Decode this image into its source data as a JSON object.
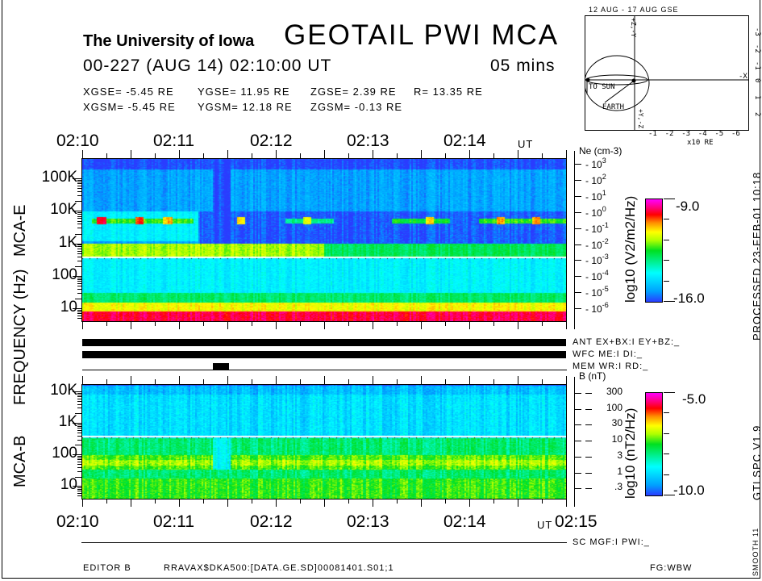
{
  "header": {
    "institution": "The University of Iowa",
    "title": "GEOTAIL PWI MCA",
    "datetime": "00-227 (AUG 14) 02:10:00 UT",
    "duration": "05 mins",
    "gse": [
      "XGSE=  -5.45 RE",
      "YGSE=  11.95 RE",
      "ZGSE=   2.39 RE",
      "R= 13.35 RE"
    ],
    "gsm": [
      "XGSM=  -5.45 RE",
      "YGSM=  12.18 RE",
      "ZGSM=  -0.13 RE"
    ]
  },
  "orbit": {
    "title": "12 AUG - 17 AUG  GSE",
    "top_axis_label": "+Z,-Y",
    "bottom_axis_label": "+Y,-Z",
    "x_axis_label": "-X",
    "to_sun": "TO SUN",
    "earth": "EARTH",
    "units": "x10 RE",
    "bottom_ticks": [
      "-1",
      "-2",
      "-3",
      "-4",
      "-5",
      "-6"
    ],
    "right_ticks": [
      "-3",
      "-2",
      "-1",
      "0",
      "1",
      "2"
    ]
  },
  "labels": {
    "frequency_axis": "FREQUENCY (Hz)",
    "mca_e": "MCA-E",
    "mca_b": "MCA-B",
    "ut": "UT",
    "ne_title": "Ne (cm",
    "ne_title_exp": "-3",
    "ne_title_close": ")",
    "b_title": "B (nT)",
    "e_cbar_label": "log10 (V2/m2/Hz)",
    "b_cbar_label": "log10 (nT2/Hz)",
    "processed": "PROCESSED 23-FEB-01  10:18",
    "version": "GTLSPC   V1.9",
    "smooth": "SMOOTH 11",
    "editor": "EDITOR B",
    "file": "RRAVAX$DKA500:[DATA.GE.SD]00081401.S01;1",
    "fg": "FG:WBW"
  },
  "status": {
    "ant": "ANT EX+BX:I EY+BZ:_",
    "wfc": "WFC ME:I    DI:_",
    "mem": "MEM WR:I    RD:_",
    "sc": "SC MGF:I    PWI:_"
  },
  "chart_data": [
    {
      "type": "heatmap",
      "title": "MCA-E",
      "xlabel": "UT",
      "ylabel": "FREQUENCY (Hz)",
      "x_ticks": [
        "02:10",
        "02:11",
        "02:12",
        "02:13",
        "02:14"
      ],
      "x_range_min": [
        0,
        5
      ],
      "y_ticks": [
        "100K",
        "10K",
        "1K",
        "100",
        "10"
      ],
      "y_tick_values": [
        100000,
        10000,
        1000,
        100,
        10
      ],
      "y_range_hz": [
        4,
        400000
      ],
      "right_axis": {
        "label": "Ne (cm-3)",
        "ticks": [
          {
            "base": "10",
            "exp": "3"
          },
          {
            "base": "10",
            "exp": "2"
          },
          {
            "base": "10",
            "exp": "1"
          },
          {
            "base": "10",
            "exp": "0"
          },
          {
            "base": "10",
            "exp": "-1"
          },
          {
            "base": "10",
            "exp": "-2"
          },
          {
            "base": "10",
            "exp": "-3"
          },
          {
            "base": "10",
            "exp": "-4"
          },
          {
            "base": "10",
            "exp": "-5"
          },
          {
            "base": "10",
            "exp": "-6"
          }
        ]
      },
      "colorbar": {
        "max": "-9.0",
        "min": "-16.0",
        "range": [
          -16,
          -9
        ]
      },
      "trace_hz": 370,
      "features": [
        {
          "t0": 0,
          "t1": 5,
          "fmin": 4,
          "fmax": 400000,
          "level": -15.2
        },
        {
          "t0": 0,
          "t1": 5,
          "fmin": 200000,
          "fmax": 400000,
          "level": -15.9
        },
        {
          "t0": 0,
          "t1": 5,
          "fmin": 3000,
          "fmax": 10000,
          "level": -14.6
        },
        {
          "t0": 0,
          "t1": 1.2,
          "fmin": 1200,
          "fmax": 10000,
          "level": -14.2
        },
        {
          "t0": 1.2,
          "t1": 5,
          "fmin": 1000,
          "fmax": 10000,
          "level": -15.8
        },
        {
          "t0": 0.1,
          "t1": 1.15,
          "fmin": 4200,
          "fmax": 6000,
          "level": -12.3
        },
        {
          "t0": 2.1,
          "t1": 2.6,
          "fmin": 4200,
          "fmax": 6000,
          "level": -13.2
        },
        {
          "t0": 3.2,
          "t1": 3.8,
          "fmin": 4200,
          "fmax": 6000,
          "level": -12.6
        },
        {
          "t0": 4.1,
          "t1": 5.0,
          "fmin": 4200,
          "fmax": 6000,
          "level": -12.4
        },
        {
          "t0": 0.15,
          "t1": 0.25,
          "fmin": 4000,
          "fmax": 6500,
          "level": -9.8
        },
        {
          "t0": 0.55,
          "t1": 0.63,
          "fmin": 4000,
          "fmax": 6500,
          "level": -10.2
        },
        {
          "t0": 0.83,
          "t1": 0.92,
          "fmin": 4000,
          "fmax": 6500,
          "level": -10.8
        },
        {
          "t0": 1.6,
          "t1": 1.68,
          "fmin": 4000,
          "fmax": 6500,
          "level": -11
        },
        {
          "t0": 2.28,
          "t1": 2.35,
          "fmin": 4000,
          "fmax": 6500,
          "level": -11.5
        },
        {
          "t0": 3.55,
          "t1": 3.62,
          "fmin": 4000,
          "fmax": 6500,
          "level": -11.2
        },
        {
          "t0": 4.28,
          "t1": 4.36,
          "fmin": 4000,
          "fmax": 6500,
          "level": -10.8
        },
        {
          "t0": 4.64,
          "t1": 4.72,
          "fmin": 4000,
          "fmax": 6500,
          "level": -10.6
        },
        {
          "t0": 1.35,
          "t1": 1.52,
          "fmin": 1000,
          "fmax": 400000,
          "level": -15.9
        },
        {
          "t0": 0,
          "t1": 2.5,
          "fmin": 380,
          "fmax": 1000,
          "level": -11.8
        },
        {
          "t0": 2.5,
          "t1": 5,
          "fmin": 380,
          "fmax": 1000,
          "level": -12.9
        },
        {
          "t0": 0,
          "t1": 5,
          "fmin": 30,
          "fmax": 370,
          "level": -14.2
        },
        {
          "t0": 0,
          "t1": 5,
          "fmin": 15,
          "fmax": 30,
          "level": -13.0
        },
        {
          "t0": 0,
          "t1": 5,
          "fmin": 8,
          "fmax": 15,
          "level": -11.3
        },
        {
          "t0": 0,
          "t1": 5,
          "fmin": 4,
          "fmax": 8,
          "level": -9.8
        }
      ]
    },
    {
      "type": "heatmap",
      "title": "MCA-B",
      "xlabel": "UT",
      "ylabel": "FREQUENCY (Hz)",
      "x_ticks": [
        "02:10",
        "02:11",
        "02:12",
        "02:13",
        "02:14",
        "02:15"
      ],
      "x_range_min": [
        0,
        5
      ],
      "y_ticks": [
        "10K",
        "1K",
        "100",
        "10"
      ],
      "y_tick_values": [
        10000,
        1000,
        100,
        10
      ],
      "y_range_hz": [
        4,
        16000
      ],
      "right_axis": {
        "label": "B (nT)",
        "ticks": [
          "300",
          "100",
          "30",
          "10",
          "3",
          "1",
          ".3"
        ]
      },
      "colorbar": {
        "max": "-5.0",
        "min": "-10.0",
        "range": [
          -10,
          -5
        ]
      },
      "trace_hz": 370,
      "features": [
        {
          "t0": 0,
          "t1": 5,
          "fmin": 4,
          "fmax": 16000,
          "level": -8.9
        },
        {
          "t0": 0,
          "t1": 5,
          "fmin": 8000,
          "fmax": 16000,
          "level": -9.2
        },
        {
          "t0": 0,
          "t1": 5,
          "fmin": 100,
          "fmax": 330,
          "level": -7.9
        },
        {
          "t0": 0,
          "t1": 5,
          "fmin": 35,
          "fmax": 100,
          "level": -7.3
        },
        {
          "t0": 0,
          "t1": 5,
          "fmin": 45,
          "fmax": 70,
          "level": -7.0
        },
        {
          "t0": 0,
          "t1": 5,
          "fmin": 18,
          "fmax": 35,
          "level": -7.9
        },
        {
          "t0": 0,
          "t1": 5,
          "fmin": 4,
          "fmax": 18,
          "level": -7.4
        },
        {
          "t0": 1.35,
          "t1": 1.52,
          "fmin": 35,
          "fmax": 330,
          "level": -8.6
        }
      ]
    }
  ],
  "status_bars": {
    "ant_on": [
      0,
      5
    ],
    "wfc_on": [
      0,
      5
    ],
    "mem_block": [
      1.35,
      1.52
    ]
  }
}
